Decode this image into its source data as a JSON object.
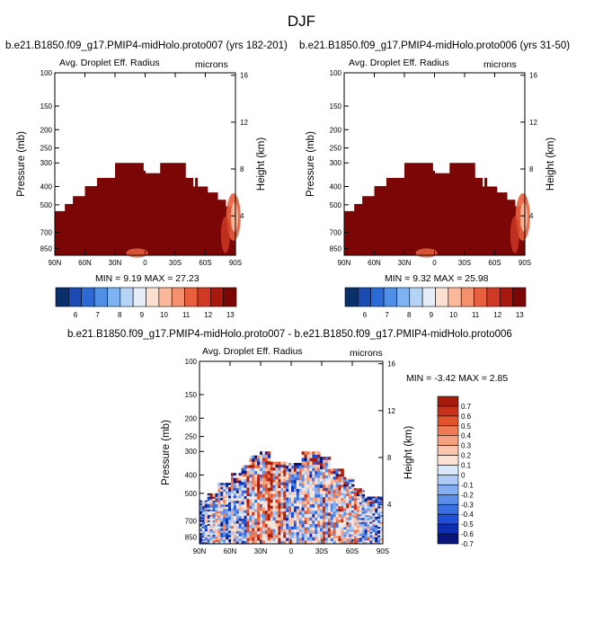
{
  "figure": {
    "title": "DJF",
    "panel1_title": "b.e21.B1850.f09_g17.PMIP4-midHolo.proto007 (yrs 182-201)",
    "panel2_title": "b.e21.B1850.f09_g17.PMIP4-midHolo.proto006 (yrs 31-50)",
    "panel3_title": "b.e21.B1850.f09_g17.PMIP4-midHolo.proto007 - b.e21.B1850.f09_g17.PMIP4-midHolo.proto006"
  },
  "colors": {
    "top_colorbar": [
      "#08306b",
      "#1a4ab2",
      "#2c6bd6",
      "#4f8fe6",
      "#7eb2f0",
      "#b4d3f5",
      "#e6eefa",
      "#fde0d0",
      "#fbb89a",
      "#f5906c",
      "#e8613f",
      "#d03a25",
      "#a8180f",
      "#7a0606"
    ],
    "diff_colorbar": [
      "#08157a",
      "#0c2fb2",
      "#1f4fd6",
      "#3a70e0",
      "#5c90e8",
      "#84aef0",
      "#aecbf5",
      "#d9e7fa",
      "#fbe3d6",
      "#f9c6ad",
      "#f5a07f",
      "#ee7a52",
      "#e2552c",
      "#c9321a",
      "#a51c0c"
    ],
    "field_fill": "#7a0606"
  },
  "chart_data": [
    {
      "type": "heatmap",
      "title": "Avg. Droplet Eff. Radius",
      "units": "microns",
      "xlabel": "",
      "ylabel": "Pressure (mb)",
      "y2label": "Height (km)",
      "x_ticks": [
        "90N",
        "60N",
        "30N",
        "0",
        "30S",
        "60S",
        "90S"
      ],
      "y_ticks": [
        100,
        150,
        200,
        250,
        300,
        400,
        500,
        700,
        850
      ],
      "y2_ticks": [
        16,
        12,
        8,
        4
      ],
      "ylim": [
        100,
        925
      ],
      "stats": "MIN =   9.19  MAX =  27.23",
      "colorbar_labels": [
        "6",
        "7",
        "8",
        "9",
        "10",
        "11",
        "12",
        "13"
      ]
    },
    {
      "type": "heatmap",
      "title": "Avg. Droplet Eff. Radius",
      "units": "microns",
      "xlabel": "",
      "ylabel": "Pressure (mb)",
      "y2label": "Height (km)",
      "x_ticks": [
        "90N",
        "60N",
        "30N",
        "0",
        "30S",
        "60S",
        "90S"
      ],
      "y_ticks": [
        100,
        150,
        200,
        250,
        300,
        400,
        500,
        700,
        850
      ],
      "y2_ticks": [
        16,
        12,
        8,
        4
      ],
      "ylim": [
        100,
        925
      ],
      "stats": "MIN =   9.32  MAX =  25.98",
      "colorbar_labels": [
        "6",
        "7",
        "8",
        "9",
        "10",
        "11",
        "12",
        "13"
      ]
    },
    {
      "type": "heatmap",
      "title": "Avg. Droplet Eff. Radius",
      "units": "microns",
      "xlabel": "",
      "ylabel": "Pressure (mb)",
      "y2label": "Height (km)",
      "x_ticks": [
        "90N",
        "60N",
        "30N",
        "0",
        "30S",
        "60S",
        "90S"
      ],
      "y_ticks": [
        100,
        150,
        200,
        250,
        300,
        400,
        500,
        700,
        850
      ],
      "y2_ticks": [
        16,
        12,
        8,
        4
      ],
      "ylim": [
        100,
        925
      ],
      "stats": "MIN = -3.42  MAX =   2.85",
      "colorbar_labels": [
        "0.7",
        "0.6",
        "0.5",
        "0.4",
        "0.3",
        "0.2",
        "0.1",
        "0",
        "-0.1",
        "-0.2",
        "-0.3",
        "-0.4",
        "-0.5",
        "-0.6",
        "-0.7"
      ]
    }
  ]
}
